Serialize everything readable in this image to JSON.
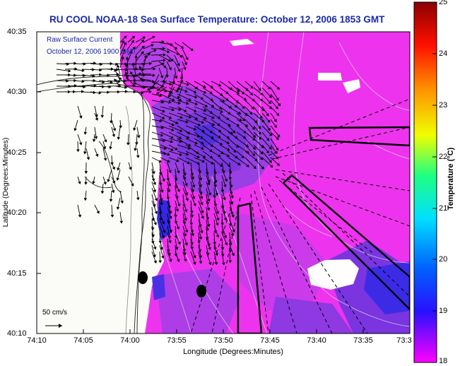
{
  "header": {
    "title": "RU COOL  NOAA-18  Sea Surface Temperature:  October 12, 2006 1853 GMT"
  },
  "inset": {
    "line1": "Raw Surface Current",
    "line2": "October 12, 2006 1900 GMT"
  },
  "scale": {
    "label": "50 cm/s"
  },
  "axes": {
    "ylabel": "Latitude (Degrees:Minutes)",
    "xlabel": "Longitude (Degrees:Minutes)",
    "yticks": [
      "40:35",
      "40:30",
      "40:25",
      "40:20",
      "40:15",
      "40:10"
    ],
    "xticks": [
      "74:10",
      "74:05",
      "74:00",
      "73:55",
      "73:50",
      "73:45",
      "73:40",
      "73:35",
      "73:3"
    ]
  },
  "colorbar": {
    "label": "Temperature (°C)",
    "ticks": [
      "25",
      "24",
      "23",
      "22",
      "21",
      "20",
      "19",
      "18"
    ],
    "range": [
      18,
      25
    ]
  },
  "colors": {
    "land": "#fbfbf7",
    "water_magenta": "#ee33ee",
    "water_violet": "#8a36e0",
    "water_blue": "#3b2be6",
    "title": "#1a2aa8"
  }
}
